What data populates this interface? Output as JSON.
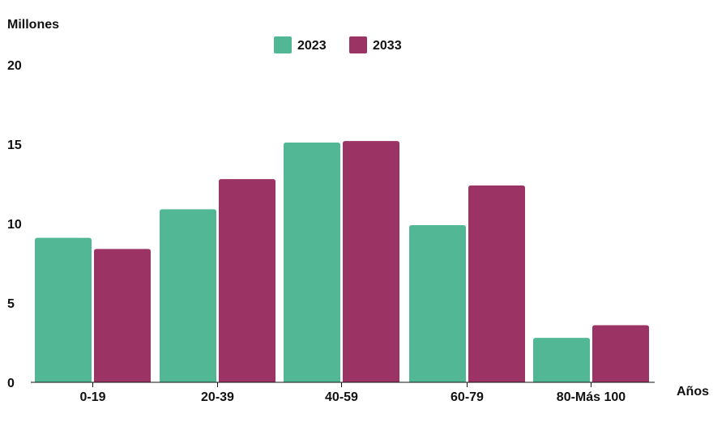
{
  "chart_data": {
    "type": "bar",
    "categories": [
      "0-19",
      "20-39",
      "40-59",
      "60-79",
      "80-Más 100"
    ],
    "series": [
      {
        "name": "2023",
        "values": [
          9.1,
          10.9,
          15.1,
          9.9,
          2.8
        ],
        "color": "#52b794"
      },
      {
        "name": "2033",
        "values": [
          8.4,
          12.8,
          15.2,
          12.4,
          3.6
        ],
        "color": "#9b3364"
      }
    ],
    "ylabel": "Millones",
    "xlabel": "Años",
    "ylim": [
      0,
      20
    ],
    "yticks": [
      0,
      5,
      10,
      15,
      20
    ],
    "grid": false,
    "legend": "top-center"
  }
}
